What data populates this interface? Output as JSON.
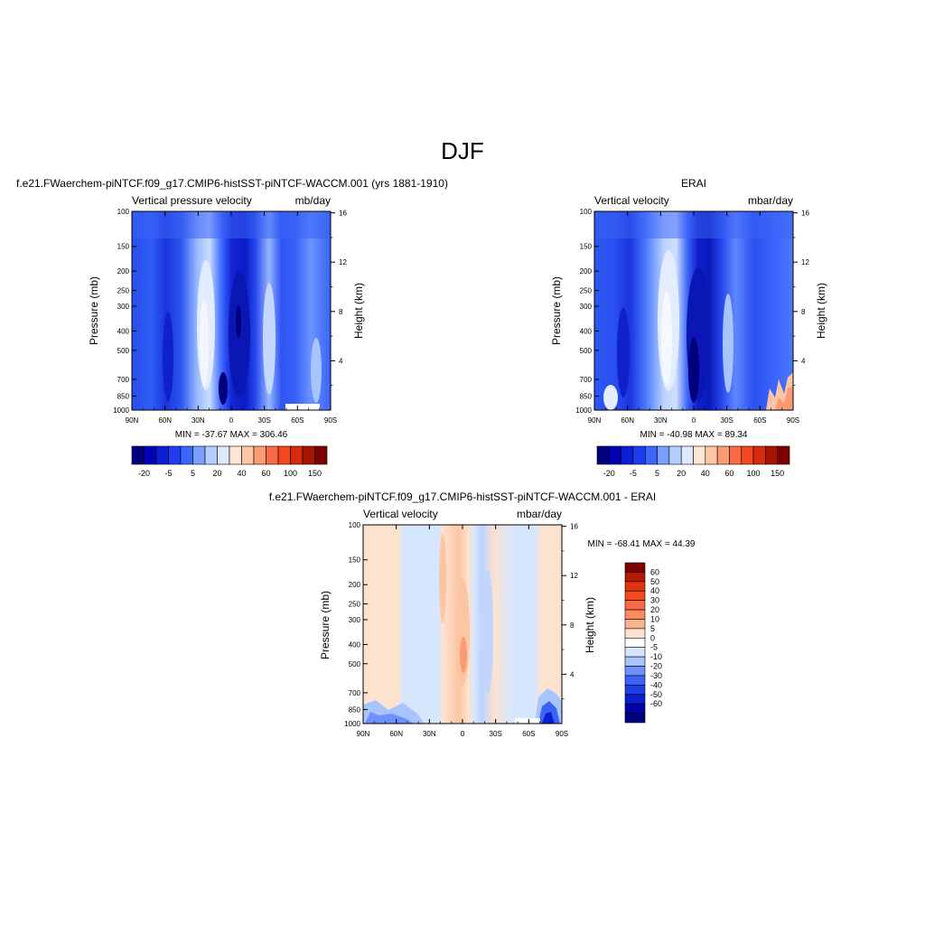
{
  "page_title": "DJF",
  "chart_data": [
    {
      "type": "heatmap",
      "panel_title": "f.e21.FWaerchem-piNTCF.f09_g17.CMIP6-histSST-piNTCF-WACCM.001 (yrs 1881-1910)",
      "left_label": "Vertical pressure velocity",
      "right_label": "mb/day",
      "ylabel": "Pressure (mb)",
      "ylabel_right": "Height (km)",
      "x_ticks": [
        "90N",
        "60N",
        "30N",
        "0",
        "30S",
        "60S",
        "90S"
      ],
      "y_ticks": [
        100,
        150,
        200,
        250,
        300,
        400,
        500,
        700,
        850,
        1000
      ],
      "y_ticks_right": [
        4,
        8,
        12,
        16
      ],
      "stats": "MIN = -37.67  MAX = 306.46",
      "legend_labels": [
        "-20",
        "-5",
        "5",
        "20",
        "40",
        "60",
        "100",
        "150"
      ],
      "colorbar_colors": [
        "#00007f",
        "#0000b8",
        "#0a1fd6",
        "#1f3cf0",
        "#3d66ff",
        "#7aa0ff",
        "#b3cfff",
        "#dde9ff",
        "#fde7d4",
        "#fcc6a4",
        "#fb9a73",
        "#f96b47",
        "#f4461f",
        "#d92a0d",
        "#a51303",
        "#7f0000"
      ],
      "ylim": [
        1000,
        100
      ],
      "xlim": [
        "90N",
        "90S"
      ]
    },
    {
      "type": "heatmap",
      "panel_title": "ERAI",
      "left_label": "Vertical velocity",
      "right_label": "mbar/day",
      "ylabel": "Pressure (mb)",
      "ylabel_right": "Height (km)",
      "x_ticks": [
        "90N",
        "60N",
        "30N",
        "0",
        "30S",
        "60S",
        "90S"
      ],
      "y_ticks": [
        100,
        150,
        200,
        250,
        300,
        400,
        500,
        700,
        850,
        1000
      ],
      "y_ticks_right": [
        4,
        8,
        12,
        16
      ],
      "stats": "MIN = -40.98  MAX =  89.34",
      "legend_labels": [
        "-20",
        "-5",
        "5",
        "20",
        "40",
        "60",
        "100",
        "150"
      ],
      "colorbar_colors": [
        "#00007f",
        "#0000b8",
        "#0a1fd6",
        "#1f3cf0",
        "#3d66ff",
        "#7aa0ff",
        "#b3cfff",
        "#dde9ff",
        "#fde7d4",
        "#fcc6a4",
        "#fb9a73",
        "#f96b47",
        "#f4461f",
        "#d92a0d",
        "#a51303",
        "#7f0000"
      ],
      "ylim": [
        1000,
        100
      ],
      "xlim": [
        "90N",
        "90S"
      ]
    },
    {
      "type": "heatmap",
      "panel_title": "f.e21.FWaerchem-piNTCF.f09_g17.CMIP6-histSST-piNTCF-WACCM.001 - ERAI",
      "left_label": "Vertical velocity",
      "right_label": "mbar/day",
      "ylabel": "Pressure (mb)",
      "ylabel_right": "Height (km)",
      "x_ticks": [
        "90N",
        "60N",
        "30N",
        "0",
        "30S",
        "60S",
        "90S"
      ],
      "y_ticks": [
        100,
        150,
        200,
        250,
        300,
        400,
        500,
        700,
        850,
        1000
      ],
      "y_ticks_right": [
        4,
        8,
        12,
        16
      ],
      "stats": "MIN = -68.41  MAX =  44.39",
      "legend_labels": [
        "60",
        "50",
        "40",
        "30",
        "20",
        "10",
        "5",
        "0",
        "-5",
        "-10",
        "-20",
        "-30",
        "-40",
        "-50",
        "-60"
      ],
      "colorbar_colors": [
        "#7f0000",
        "#b51a05",
        "#e0330f",
        "#f54a1e",
        "#f96b47",
        "#fb8c62",
        "#fcb48e",
        "#fde3cf",
        "#ffffff",
        "#d6e6ff",
        "#a8c4ff",
        "#6d92ff",
        "#3c63f5",
        "#1f3ce6",
        "#0b1ed0",
        "#0000a8",
        "#00007f"
      ],
      "ylim": [
        1000,
        100
      ],
      "xlim": [
        "90N",
        "90S"
      ]
    }
  ]
}
